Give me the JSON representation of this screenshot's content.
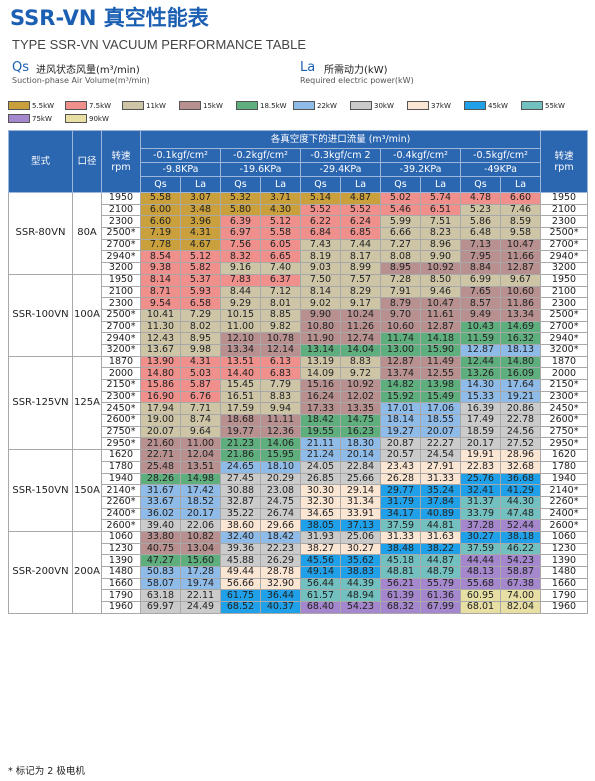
{
  "header": {
    "title": "SSR-VN 真空性能表",
    "subtitle": "TYPE SSR-VN VACUUM PERFORMANCE TABLE"
  },
  "notes": [
    {
      "symbol": "Qs",
      "label": "进风状态风量(m³/min)",
      "sublabel": "Suction-phase Air Volume(m³/min)"
    },
    {
      "symbol": "La",
      "label": "所需动力(kW)",
      "sublabel": "Required electric power(kW)"
    }
  ],
  "power_legend": [
    {
      "label": "5.5kW",
      "color": "#c9a03c"
    },
    {
      "label": "7.5kW",
      "color": "#f0908c"
    },
    {
      "label": "11kW",
      "color": "#cdc5a5"
    },
    {
      "label": "15kW",
      "color": "#b89090"
    },
    {
      "label": "18.5kW",
      "color": "#5fae7e"
    },
    {
      "label": "22kW",
      "color": "#8fbbe8"
    },
    {
      "label": "30kW",
      "color": "#cbcbcb"
    },
    {
      "label": "37kW",
      "color": "#fbe5d3"
    },
    {
      "label": "45kW",
      "color": "#1fa0e8"
    },
    {
      "label": "55kW",
      "color": "#72c0c0"
    },
    {
      "label": "75kW",
      "color": "#a487cc"
    },
    {
      "label": "90kW",
      "color": "#e8dfa5"
    }
  ],
  "table": {
    "head": {
      "model": "型式",
      "bore": "口径",
      "speed": "转速",
      "speed_unit": "rpm",
      "group": "各真空度下的进口流量 (m³/min)",
      "qs": "Qs",
      "la": "La",
      "pressures": [
        {
          "kgf": "-0.1kgf/cm²",
          "kpa": "-9.8KPa"
        },
        {
          "kgf": "-0.2kgf/cm²",
          "kpa": "-19.6KPa"
        },
        {
          "kgf": "-0.3kgf/cm 2",
          "kpa": "-29.4KPa"
        },
        {
          "kgf": "-0.4kgf/cm²",
          "kpa": "-39.2KPa"
        },
        {
          "kgf": "-0.5kgf/cm²",
          "kpa": "-49KPa"
        }
      ]
    },
    "groups": [
      {
        "model": "SSR-80VN",
        "bore": "80A",
        "rows": [
          {
            "rpm": "1950",
            "cells": [
              "5.58",
              "3.07",
              "5.32",
              "3.71",
              "5.14",
              "4.87",
              "5.02",
              "5.74",
              "4.78",
              "6.60"
            ],
            "fills": [
              "#c9a03c",
              "#c9a03c",
              "#c9a03c",
              "#f0908c",
              "#f0908c"
            ]
          },
          {
            "rpm": "2100",
            "cells": [
              "6.00",
              "3.48",
              "5.80",
              "4.30",
              "5.52",
              "5.52",
              "5.46",
              "6.51",
              "5.23",
              "7.46"
            ],
            "fills": [
              "#c9a03c",
              "#c9a03c",
              "#f0908c",
              "#f0908c",
              "#cdc5a5"
            ]
          },
          {
            "rpm": "2300",
            "cells": [
              "6.60",
              "3.96",
              "6.39",
              "5.12",
              "6.22",
              "6.24",
              "5.99",
              "7.51",
              "5.86",
              "8.59"
            ],
            "fills": [
              "#c9a03c",
              "#f0908c",
              "#f0908c",
              "#cdc5a5",
              "#cdc5a5"
            ]
          },
          {
            "rpm": "2500*",
            "cells": [
              "7.19",
              "4.31",
              "6.97",
              "5.58",
              "6.84",
              "6.85",
              "6.66",
              "8.23",
              "6.48",
              "9.58"
            ],
            "fills": [
              "#c9a03c",
              "#f0908c",
              "#f0908c",
              "#cdc5a5",
              "#cdc5a5"
            ]
          },
          {
            "rpm": "2700*",
            "cells": [
              "7.78",
              "4.67",
              "7.56",
              "6.05",
              "7.43",
              "7.44",
              "7.27",
              "8.96",
              "7.13",
              "10.47"
            ],
            "fills": [
              "#c9a03c",
              "#f0908c",
              "#cdc5a5",
              "#cdc5a5",
              "#b89090"
            ]
          },
          {
            "rpm": "2940*",
            "cells": [
              "8.54",
              "5.12",
              "8.32",
              "6.65",
              "8.19",
              "8.17",
              "8.08",
              "9.90",
              "7.95",
              "11.66"
            ],
            "fills": [
              "#f0908c",
              "#f0908c",
              "#cdc5a5",
              "#cdc5a5",
              "#b89090"
            ]
          },
          {
            "rpm": "3200",
            "cells": [
              "9.38",
              "5.82",
              "9.16",
              "7.40",
              "9.03",
              "8.99",
              "8.95",
              "10.92",
              "8.84",
              "12.87"
            ],
            "fills": [
              "#f0908c",
              "#cdc5a5",
              "#cdc5a5",
              "#b89090",
              "#b89090"
            ]
          }
        ]
      },
      {
        "model": "SSR-100VN",
        "bore": "100A",
        "rows": [
          {
            "rpm": "1950",
            "cells": [
              "8.14",
              "5.37",
              "7.83",
              "6.37",
              "7.50",
              "7.57",
              "7.28",
              "8.50",
              "6.99",
              "9.67"
            ],
            "fills": [
              "#f0908c",
              "#f0908c",
              "#cdc5a5",
              "#cdc5a5",
              "#cdc5a5"
            ]
          },
          {
            "rpm": "2100",
            "cells": [
              "8.71",
              "5.93",
              "8.44",
              "7.12",
              "8.14",
              "8.29",
              "7.91",
              "9.46",
              "7.65",
              "10.60"
            ],
            "fills": [
              "#f0908c",
              "#cdc5a5",
              "#cdc5a5",
              "#cdc5a5",
              "#b89090"
            ]
          },
          {
            "rpm": "2300",
            "cells": [
              "9.54",
              "6.58",
              "9.29",
              "8.01",
              "9.02",
              "9.17",
              "8.79",
              "10.47",
              "8.57",
              "11.86"
            ],
            "fills": [
              "#f0908c",
              "#cdc5a5",
              "#cdc5a5",
              "#b89090",
              "#b89090"
            ]
          },
          {
            "rpm": "2500*",
            "cells": [
              "10.41",
              "7.29",
              "10.15",
              "8.85",
              "9.90",
              "10.24",
              "9.70",
              "11.61",
              "9.49",
              "13.34"
            ],
            "fills": [
              "#cdc5a5",
              "#cdc5a5",
              "#b89090",
              "#b89090",
              "#b89090"
            ]
          },
          {
            "rpm": "2700*",
            "cells": [
              "11.30",
              "8.02",
              "11.00",
              "9.82",
              "10.80",
              "11.26",
              "10.60",
              "12.87",
              "10.43",
              "14.69"
            ],
            "fills": [
              "#cdc5a5",
              "#cdc5a5",
              "#b89090",
              "#b89090",
              "#5fae7e"
            ]
          },
          {
            "rpm": "2940*",
            "cells": [
              "12.43",
              "8.95",
              "12.10",
              "10.78",
              "11.90",
              "12.74",
              "11.74",
              "14.18",
              "11.59",
              "16.32"
            ],
            "fills": [
              "#cdc5a5",
              "#b89090",
              "#b89090",
              "#5fae7e",
              "#5fae7e"
            ]
          },
          {
            "rpm": "3200*",
            "cells": [
              "13.67",
              "9.98",
              "13.34",
              "12.14",
              "13.14",
              "14.04",
              "13.00",
              "15.90",
              "12.87",
              "18.13"
            ],
            "fills": [
              "#cdc5a5",
              "#b89090",
              "#5fae7e",
              "#5fae7e",
              "#8fbbe8"
            ]
          }
        ]
      },
      {
        "model": "SSR-125VN",
        "bore": "125A",
        "rows": [
          {
            "rpm": "1870",
            "cells": [
              "13.90",
              "4.31",
              "13.51",
              "6.13",
              "13.19",
              "8.83",
              "12.87",
              "11.49",
              "12.44",
              "14.80"
            ],
            "fills": [
              "#f0908c",
              "#f0908c",
              "#cdc5a5",
              "#b89090",
              "#5fae7e"
            ]
          },
          {
            "rpm": "2000",
            "cells": [
              "14.80",
              "5.03",
              "14.40",
              "6.83",
              "14.09",
              "9.72",
              "13.74",
              "12.55",
              "13.26",
              "16.09"
            ],
            "fills": [
              "#f0908c",
              "#f0908c",
              "#cdc5a5",
              "#b89090",
              "#5fae7e"
            ]
          },
          {
            "rpm": "2150*",
            "cells": [
              "15.86",
              "5.87",
              "15.45",
              "7.79",
              "15.16",
              "10.92",
              "14.82",
              "13.98",
              "14.30",
              "17.64"
            ],
            "fills": [
              "#f0908c",
              "#cdc5a5",
              "#b89090",
              "#5fae7e",
              "#8fbbe8"
            ]
          },
          {
            "rpm": "2300*",
            "cells": [
              "16.90",
              "6.76",
              "16.51",
              "8.83",
              "16.24",
              "12.02",
              "15.92",
              "15.49",
              "15.33",
              "19.21"
            ],
            "fills": [
              "#f0908c",
              "#cdc5a5",
              "#b89090",
              "#5fae7e",
              "#8fbbe8"
            ]
          },
          {
            "rpm": "2450*",
            "cells": [
              "17.94",
              "7.71",
              "17.59",
              "9.94",
              "17.33",
              "13.35",
              "17.01",
              "17.06",
              "16.39",
              "20.86"
            ],
            "fills": [
              "#cdc5a5",
              "#cdc5a5",
              "#b89090",
              "#8fbbe8",
              "#cbcbcb"
            ]
          },
          {
            "rpm": "2600*",
            "cells": [
              "19.00",
              "8.74",
              "18.68",
              "11.11",
              "18.42",
              "14.75",
              "18.14",
              "18.55",
              "17.49",
              "22.78"
            ],
            "fills": [
              "#cdc5a5",
              "#b89090",
              "#5fae7e",
              "#8fbbe8",
              "#cbcbcb"
            ]
          },
          {
            "rpm": "2750*",
            "cells": [
              "20.07",
              "9.64",
              "19.77",
              "12.36",
              "19.55",
              "16.23",
              "19.27",
              "20.07",
              "18.59",
              "24.56"
            ],
            "fills": [
              "#cdc5a5",
              "#b89090",
              "#5fae7e",
              "#8fbbe8",
              "#cbcbcb"
            ]
          },
          {
            "rpm": "2950*",
            "cells": [
              "21.60",
              "11.00",
              "21.23",
              "14.06",
              "21.11",
              "18.30",
              "20.87",
              "22.27",
              "20.17",
              "27.52"
            ],
            "fills": [
              "#b89090",
              "#5fae7e",
              "#8fbbe8",
              "#cbcbcb",
              "#cbcbcb"
            ]
          }
        ]
      },
      {
        "model": "SSR-150VN",
        "bore": "150A",
        "rows": [
          {
            "rpm": "1620",
            "cells": [
              "22.71",
              "12.04",
              "21.86",
              "15.95",
              "21.24",
              "20.14",
              "20.57",
              "24.54",
              "19.91",
              "28.96"
            ],
            "fills": [
              "#b89090",
              "#5fae7e",
              "#8fbbe8",
              "#cbcbcb",
              "#fbe5d3"
            ]
          },
          {
            "rpm": "1780",
            "cells": [
              "25.48",
              "13.51",
              "24.65",
              "18.10",
              "24.05",
              "22.84",
              "23.43",
              "27.91",
              "22.83",
              "32.68"
            ],
            "fills": [
              "#b89090",
              "#8fbbe8",
              "#cbcbcb",
              "#fbe5d3",
              "#fbe5d3"
            ]
          },
          {
            "rpm": "1940",
            "cells": [
              "28.26",
              "14.98",
              "27.45",
              "20.29",
              "26.85",
              "25.66",
              "26.28",
              "31.33",
              "25.76",
              "36.68"
            ],
            "fills": [
              "#5fae7e",
              "#cbcbcb",
              "#cbcbcb",
              "#fbe5d3",
              "#1fa0e8"
            ]
          },
          {
            "rpm": "2140*",
            "cells": [
              "31.67",
              "17.42",
              "30.88",
              "23.08",
              "30.30",
              "29.14",
              "29.77",
              "35.24",
              "32.41",
              "41.29"
            ],
            "fills": [
              "#8fbbe8",
              "#cbcbcb",
              "#fbe5d3",
              "#1fa0e8",
              "#1fa0e8"
            ]
          },
          {
            "rpm": "2260*",
            "cells": [
              "33.67",
              "18.52",
              "32.87",
              "24.75",
              "32.30",
              "31.34",
              "31.79",
              "37.84",
              "31.37",
              "44.30"
            ],
            "fills": [
              "#8fbbe8",
              "#cbcbcb",
              "#fbe5d3",
              "#1fa0e8",
              "#72c0c0"
            ]
          },
          {
            "rpm": "2400*",
            "cells": [
              "36.02",
              "20.17",
              "35.22",
              "26.74",
              "34.65",
              "33.91",
              "34.17",
              "40.89",
              "33.79",
              "47.48"
            ],
            "fills": [
              "#8fbbe8",
              "#cbcbcb",
              "#fbe5d3",
              "#1fa0e8",
              "#72c0c0"
            ]
          },
          {
            "rpm": "2600*",
            "cells": [
              "39.40",
              "22.06",
              "38.60",
              "29.66",
              "38.05",
              "37.13",
              "37.59",
              "44.81",
              "37.28",
              "52.44"
            ],
            "fills": [
              "#cbcbcb",
              "#fbe5d3",
              "#1fa0e8",
              "#72c0c0",
              "#a487cc"
            ]
          }
        ]
      },
      {
        "model": "SSR-200VN",
        "bore": "200A",
        "rows": [
          {
            "rpm": "1060",
            "cells": [
              "33.80",
              "10.82",
              "32.40",
              "18.42",
              "31.93",
              "25.06",
              "31.33",
              "31.63",
              "30.27",
              "38.18"
            ],
            "fills": [
              "#b89090",
              "#8fbbe8",
              "#cbcbcb",
              "#fbe5d3",
              "#1fa0e8"
            ]
          },
          {
            "rpm": "1230",
            "cells": [
              "40.75",
              "13.04",
              "39.36",
              "22.23",
              "38.27",
              "30.27",
              "38.48",
              "38.22",
              "37.59",
              "46.22"
            ],
            "fills": [
              "#b89090",
              "#cbcbcb",
              "#fbe5d3",
              "#1fa0e8",
              "#72c0c0"
            ]
          },
          {
            "rpm": "1390",
            "cells": [
              "47.27",
              "15.60",
              "45.88",
              "26.29",
              "45.56",
              "35.62",
              "45.18",
              "44.87",
              "44.44",
              "54.23"
            ],
            "fills": [
              "#5fae7e",
              "#cbcbcb",
              "#1fa0e8",
              "#72c0c0",
              "#a487cc"
            ]
          },
          {
            "rpm": "1480",
            "cells": [
              "50.83",
              "17.28",
              "49.44",
              "28.78",
              "49.14",
              "38.83",
              "48.81",
              "48.79",
              "48.13",
              "58.87"
            ],
            "fills": [
              "#8fbbe8",
              "#fbe5d3",
              "#1fa0e8",
              "#72c0c0",
              "#a487cc"
            ]
          },
          {
            "rpm": "1660",
            "cells": [
              "58.07",
              "19.74",
              "56.66",
              "32.90",
              "56.44",
              "44.39",
              "56.21",
              "55.79",
              "55.68",
              "67.38"
            ],
            "fills": [
              "#8fbbe8",
              "#fbe5d3",
              "#72c0c0",
              "#a487cc",
              "#a487cc"
            ]
          },
          {
            "rpm": "1790",
            "cells": [
              "63.18",
              "22.11",
              "61.75",
              "36.44",
              "61.57",
              "48.94",
              "61.39",
              "61.36",
              "60.95",
              "74.00"
            ],
            "fills": [
              "#cbcbcb",
              "#1fa0e8",
              "#72c0c0",
              "#a487cc",
              "#e8dfa5"
            ]
          },
          {
            "rpm": "1960",
            "cells": [
              "69.97",
              "24.49",
              "68.52",
              "40.37",
              "68.40",
              "54.23",
              "68.32",
              "67.99",
              "68.01",
              "82.04"
            ],
            "fills": [
              "#cbcbcb",
              "#1fa0e8",
              "#a487cc",
              "#a487cc",
              "#e8dfa5"
            ]
          }
        ]
      }
    ]
  },
  "footnote": "* 标记为 2 极电机"
}
